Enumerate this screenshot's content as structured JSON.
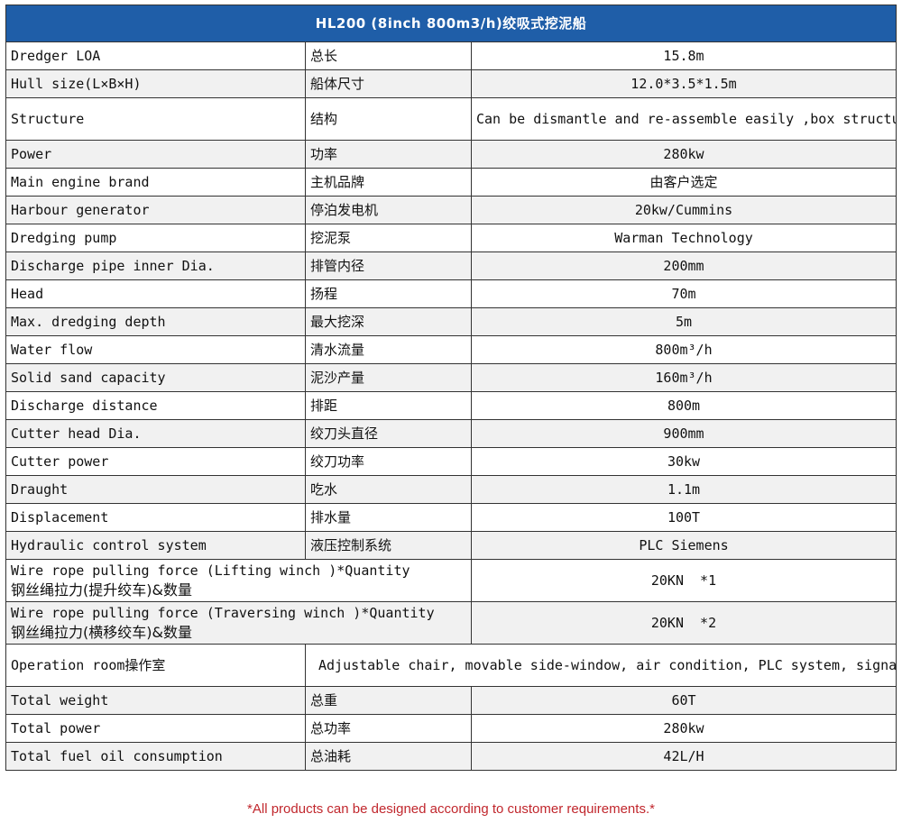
{
  "title": "HL200 (8inch 800m3/h)绞吸式挖泥船",
  "rows": [
    {
      "en": "Dredger LOA",
      "cn": "总长",
      "value": "15.8m"
    },
    {
      "en": "Hull size(L×B×H)",
      "cn": "船体尺寸",
      "value": "12.0*3.5*1.5m"
    },
    {
      "en": "Structure",
      "cn": "结构",
      "value": "Can be dismantle and re-assemble easily ,box structure, lower delivery cost"
    },
    {
      "en": "Power",
      "cn": "功率",
      "value": "280kw"
    },
    {
      "en": "Main engine brand",
      "cn": "主机品牌",
      "value": "由客户选定"
    },
    {
      "en": "Harbour generator",
      "cn": "停泊发电机",
      "value": "20kw/Cummins"
    },
    {
      "en": "Dredging pump",
      "cn": "挖泥泵",
      "value": "Warman Technology"
    },
    {
      "en": "Discharge pipe inner Dia.",
      "cn": "排管内径",
      "value": "200mm"
    },
    {
      "en": "Head",
      "cn": "扬程",
      "value": "70m"
    },
    {
      "en": "Max. dredging depth",
      "cn": "最大挖深",
      "value": "5m"
    },
    {
      "en": "Water flow",
      "cn": "清水流量",
      "value": "800m³/h"
    },
    {
      "en": "Solid sand capacity",
      "cn": "泥沙产量",
      "value": "160m³/h"
    },
    {
      "en": "Discharge distance",
      "cn": "排距",
      "value": "800m"
    },
    {
      "en": "Cutter head Dia.",
      "cn": "绞刀头直径",
      "value": "900mm"
    },
    {
      "en": "Cutter power",
      "cn": "绞刀功率",
      "value": "30kw"
    },
    {
      "en": "Draught",
      "cn": "吃水",
      "value": "1.1m"
    },
    {
      "en": "Displacement",
      "cn": "排水量",
      "value": "100T"
    },
    {
      "en": "Hydraulic control system",
      "cn": "液压控制系统",
      "value": "PLC Siemens"
    }
  ],
  "wide_rows": [
    {
      "en": "Wire rope pulling force (Lifting winch )*Quantity",
      "cn": "钢丝绳拉力(提升绞车)&数量",
      "value": "20KN  *1"
    },
    {
      "en": "Wire rope pulling force (Traversing winch )*Quantity",
      "cn": "钢丝绳拉力(横移绞车)&数量",
      "value": "20KN  *2"
    }
  ],
  "operation_room": {
    "label": "Operation room操作室",
    "value": "Adjustable chair, movable side-window, air condition, PLC system, signal lights and floodlights"
  },
  "tail_rows": [
    {
      "en": "Total weight",
      "cn": "总重",
      "value": "60T"
    },
    {
      "en": "Total power",
      "cn": "总功率",
      "value": "280kw"
    },
    {
      "en": "Total fuel oil consumption",
      "cn": "总油耗",
      "value": "42L/H"
    }
  ],
  "footnote": "*All products can be designed according to customer requirements.*"
}
